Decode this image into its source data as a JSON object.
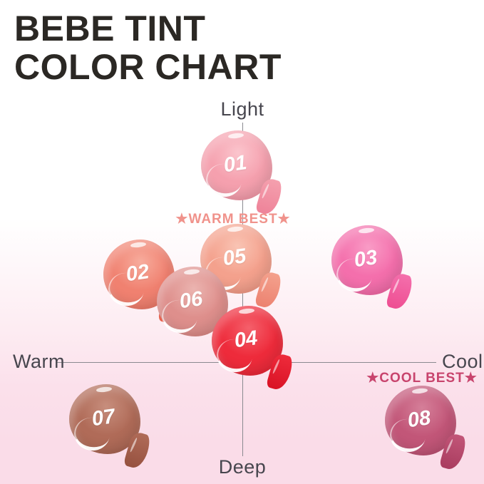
{
  "title": {
    "line1": "BEBE TINT",
    "line2": "COLOR CHART"
  },
  "axes": {
    "top_label": "Light",
    "bottom_label": "Deep",
    "left_label": "Warm",
    "right_label": "Cool"
  },
  "annotations": {
    "warm_best": {
      "label": "★WARM BEST★",
      "color": "#f0928b",
      "applies_to": "05"
    },
    "cool_best": {
      "label": "★COOL BEST★",
      "color": "#c8446d",
      "applies_to": "08"
    }
  },
  "swatches": [
    {
      "number": "01",
      "color": "#f5a0ae",
      "color_light": "#fbc5cd",
      "color_dark": "#ee8399"
    },
    {
      "number": "02",
      "color": "#f08170",
      "color_light": "#f7ac9d",
      "color_dark": "#e7624f"
    },
    {
      "number": "03",
      "color": "#f46fac",
      "color_light": "#f99cc6",
      "color_dark": "#ee4e92"
    },
    {
      "number": "04",
      "color": "#ee2b3b",
      "color_light": "#f4606b",
      "color_dark": "#d91225"
    },
    {
      "number": "05",
      "color": "#f4a18d",
      "color_light": "#f9c4b4",
      "color_dark": "#ec8270"
    },
    {
      "number": "06",
      "color": "#de8f8c",
      "color_light": "#ebb4b0",
      "color_dark": "#d17370"
    },
    {
      "number": "07",
      "color": "#b06b58",
      "color_light": "#c78e7d",
      "color_dark": "#96513f"
    },
    {
      "number": "08",
      "color": "#c25678",
      "color_light": "#d57f99",
      "color_dark": "#a93c5f"
    }
  ],
  "colors": {
    "background_bottom": "#fadce8",
    "title_text": "#2b2824",
    "axis_line": "#8a8a90",
    "axis_label_text": "#47464e"
  },
  "chart_data": {
    "type": "scatter",
    "title": "BEBE TINT COLOR CHART",
    "x_axis": {
      "label_left": "Warm",
      "label_right": "Cool",
      "range": [
        -1,
        1
      ]
    },
    "y_axis": {
      "label_top": "Light",
      "label_bottom": "Deep",
      "range": [
        -1,
        1
      ]
    },
    "grid": false,
    "points": [
      {
        "id": "01",
        "x": -0.03,
        "y": 0.82,
        "color": "#f5a0ae"
      },
      {
        "id": "02",
        "x": -0.55,
        "y": 0.37,
        "color": "#f08170"
      },
      {
        "id": "03",
        "x": 0.64,
        "y": 0.43,
        "color": "#f46fac"
      },
      {
        "id": "04",
        "x": 0.03,
        "y": 0.09,
        "color": "#ee2b3b"
      },
      {
        "id": "05",
        "x": -0.03,
        "y": 0.43,
        "color": "#f4a18d"
      },
      {
        "id": "06",
        "x": -0.27,
        "y": 0.25,
        "color": "#de8f8c"
      },
      {
        "id": "07",
        "x": -0.74,
        "y": -0.24,
        "color": "#b06b58"
      },
      {
        "id": "08",
        "x": 0.92,
        "y": -0.24,
        "color": "#c25678"
      }
    ],
    "annotations": [
      {
        "text": "★WARM BEST★",
        "near_point": "05"
      },
      {
        "text": "★COOL BEST★",
        "near_point": "08"
      }
    ]
  }
}
